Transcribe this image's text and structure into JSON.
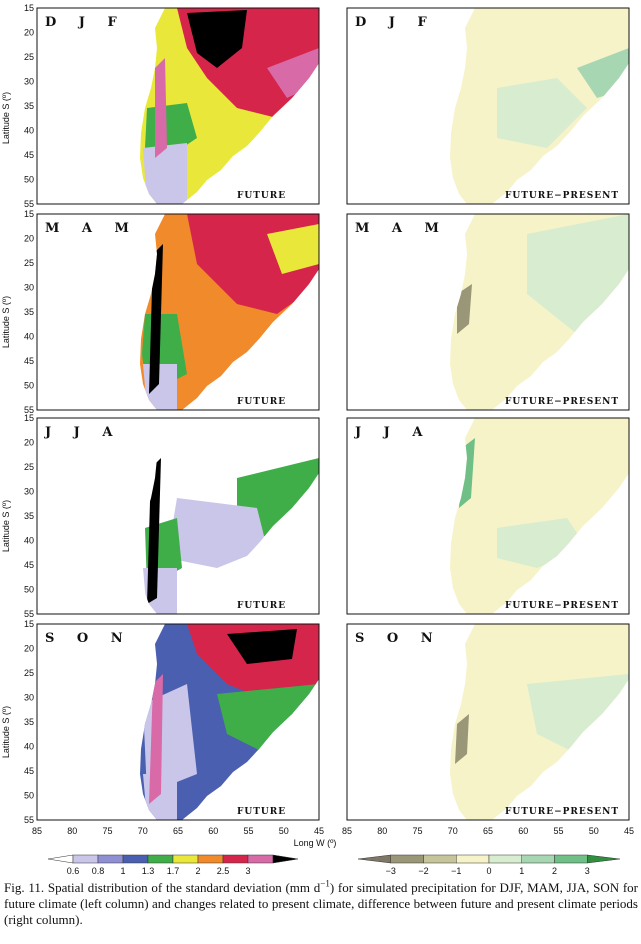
{
  "figure": {
    "seasons": [
      "D J F",
      "M A M",
      "J J A",
      "S O N"
    ],
    "left_panel_tag": "FUTURE",
    "right_panel_tag": "FUTURE−PRESENT",
    "latitude_ticks": [
      "15",
      "20",
      "25",
      "30",
      "35",
      "40",
      "45",
      "50",
      "55"
    ],
    "longitude_ticks": [
      "85",
      "80",
      "75",
      "70",
      "65",
      "60",
      "55",
      "50",
      "45"
    ],
    "ylabel": "Latitude S (º)",
    "xlabel": "Long W (º)"
  },
  "legend_left": {
    "labels": [
      "0.6",
      "0.8",
      "1",
      "1.3",
      "1.7",
      "2",
      "2.5",
      "3"
    ],
    "colors": [
      "#ffffff",
      "#c9c6ea",
      "#8f8fd4",
      "#4a5fb0",
      "#3fae49",
      "#e9e83a",
      "#f08a2a",
      "#d6254a",
      "#d86aa8",
      "#000000"
    ]
  },
  "legend_right": {
    "labels": [
      "-3",
      "-2",
      "-1",
      "0",
      "1",
      "2",
      "3"
    ],
    "colors": [
      "#7f7766",
      "#9a9779",
      "#c6c59a",
      "#f6f3c9",
      "#d8ecd0",
      "#a7d6b2",
      "#6fbf87",
      "#2f8f3f"
    ]
  },
  "caption": {
    "prefix": "Fig. 11. Spatial distribution of the standard deviation (mm d",
    "superscript": "−1",
    "suffix": ") for simulated precipitation for DJF, MAM, JJA, SON for future climate (left column) and changes related to present climate, difference between future and present climate periods (right column)."
  }
}
